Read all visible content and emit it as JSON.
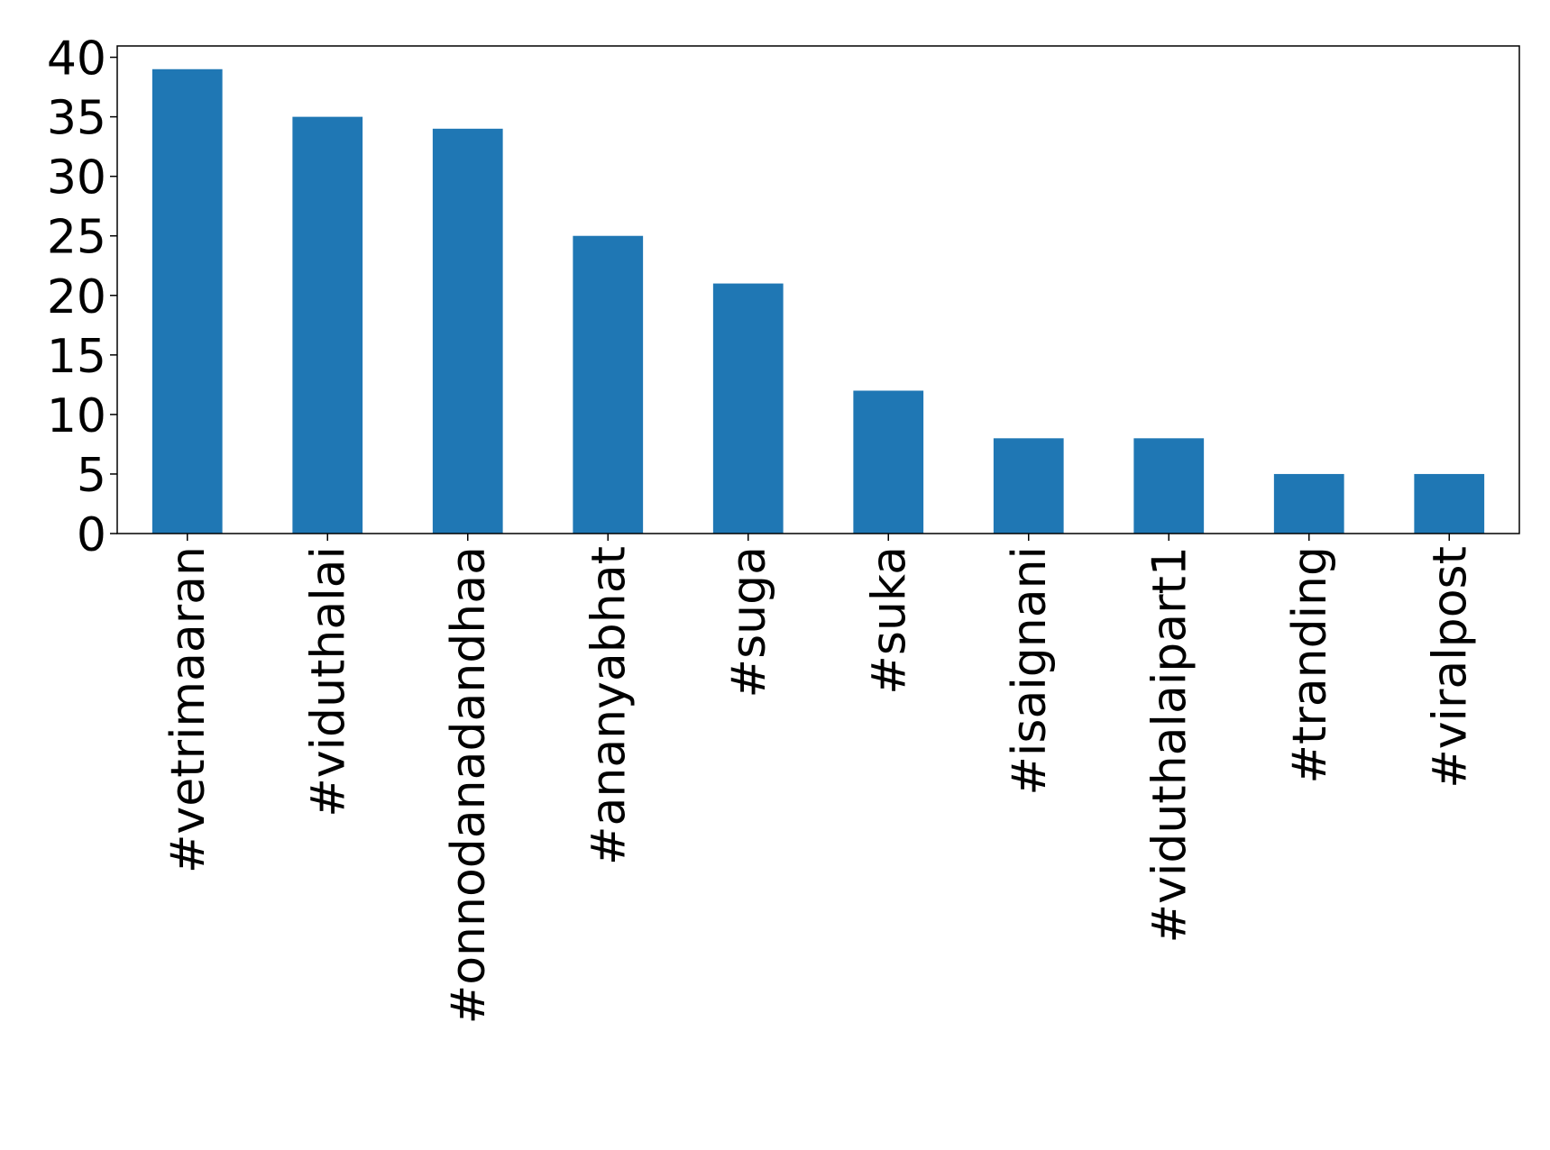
{
  "chart_data": {
    "type": "bar",
    "categories": [
      "#vetrimaaran",
      "#viduthalai",
      "#onnodanadandhaa",
      "#ananyabhat",
      "#suga",
      "#suka",
      "#isaignani",
      "#viduthalaipart1",
      "#tranding",
      "#viralpost"
    ],
    "values": [
      39,
      35,
      34,
      25,
      21,
      12,
      8,
      8,
      5,
      5
    ],
    "color": "#1f77b4",
    "ylim": [
      0,
      40.95
    ],
    "yticks": [
      0,
      5,
      10,
      15,
      20,
      25,
      30,
      35,
      40
    ],
    "grid": false
  }
}
